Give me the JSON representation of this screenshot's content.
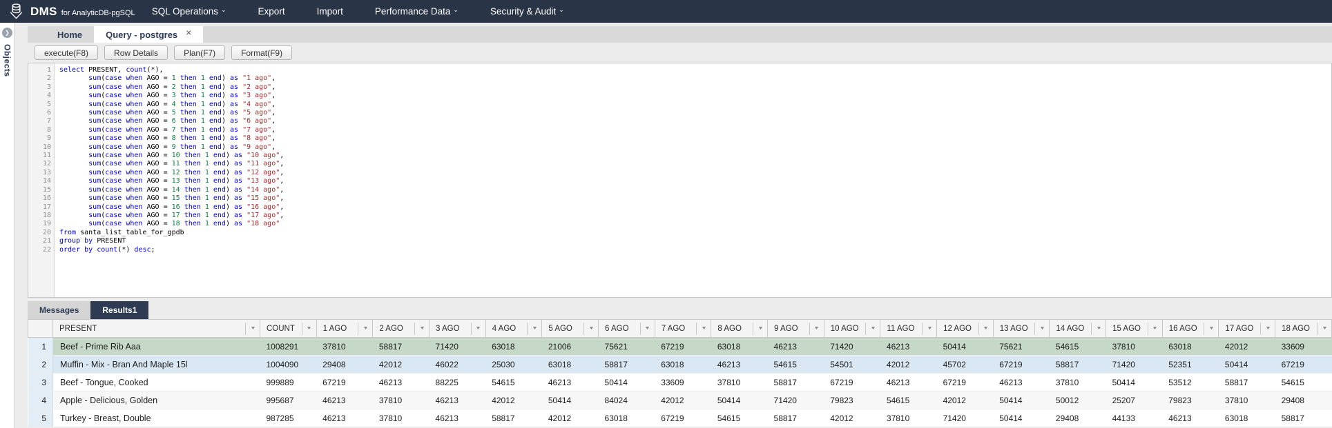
{
  "navbar": {
    "brand": "DMS",
    "brand_suffix": "for AnalyticDB-pgSQL",
    "items": [
      {
        "label": "SQL Operations",
        "caret": true
      },
      {
        "label": "Export",
        "caret": false
      },
      {
        "label": "Import",
        "caret": false
      },
      {
        "label": "Performance Data",
        "caret": true
      },
      {
        "label": "Security & Audit",
        "caret": true
      }
    ]
  },
  "sidebar": {
    "label": "Objects"
  },
  "doc_tabs": [
    {
      "label": "Home",
      "active": false,
      "closable": false
    },
    {
      "label": "Query - postgres",
      "active": true,
      "closable": true
    }
  ],
  "toolbar": {
    "buttons": [
      "execute(F8)",
      "Row Details",
      "Plan(F7)",
      "Format(F9)"
    ]
  },
  "editor": {
    "lines": [
      "select PRESENT, count(*),",
      "       sum(case when AGO = 1 then 1 end) as \"1 ago\",",
      "       sum(case when AGO = 2 then 1 end) as \"2 ago\",",
      "       sum(case when AGO = 3 then 1 end) as \"3 ago\",",
      "       sum(case when AGO = 4 then 1 end) as \"4 ago\",",
      "       sum(case when AGO = 5 then 1 end) as \"5 ago\",",
      "       sum(case when AGO = 6 then 1 end) as \"6 ago\",",
      "       sum(case when AGO = 7 then 1 end) as \"7 ago\",",
      "       sum(case when AGO = 8 then 1 end) as \"8 ago\",",
      "       sum(case when AGO = 9 then 1 end) as \"9 ago\",",
      "       sum(case when AGO = 10 then 1 end) as \"10 ago\",",
      "       sum(case when AGO = 11 then 1 end) as \"11 ago\",",
      "       sum(case when AGO = 12 then 1 end) as \"12 ago\",",
      "       sum(case when AGO = 13 then 1 end) as \"13 ago\",",
      "       sum(case when AGO = 14 then 1 end) as \"14 ago\",",
      "       sum(case when AGO = 15 then 1 end) as \"15 ago\",",
      "       sum(case when AGO = 16 then 1 end) as \"16 ago\",",
      "       sum(case when AGO = 17 then 1 end) as \"17 ago\",",
      "       sum(case when AGO = 18 then 1 end) as \"18 ago\"",
      "from santa_list_table_for_gpdb",
      "group by PRESENT",
      "order by count(*) desc;"
    ]
  },
  "results": {
    "tabs": [
      {
        "label": "Messages",
        "active": false
      },
      {
        "label": "Results1",
        "active": true
      }
    ],
    "columns": [
      "PRESENT",
      "COUNT",
      "1 AGO",
      "2 AGO",
      "3 AGO",
      "4 AGO",
      "5 AGO",
      "6 AGO",
      "7 AGO",
      "8 AGO",
      "9 AGO",
      "10 AGO",
      "11 AGO",
      "12 AGO",
      "13 AGO",
      "14 AGO",
      "15 AGO",
      "16 AGO",
      "17 AGO",
      "18 AGO"
    ],
    "rows": [
      {
        "num": 1,
        "highlight": "selected",
        "cells": [
          "Beef - Prime Rib Aaa",
          1008291,
          37810,
          58817,
          71420,
          63018,
          21006,
          75621,
          67219,
          63018,
          46213,
          71420,
          46213,
          50414,
          75621,
          54615,
          37810,
          63018,
          42012,
          33609
        ]
      },
      {
        "num": 2,
        "highlight": "hover",
        "cells": [
          "Muffin - Mix - Bran And Maple 15l",
          1004090,
          29408,
          42012,
          46022,
          25030,
          63018,
          58817,
          63018,
          46213,
          54615,
          54501,
          42012,
          45702,
          67219,
          58817,
          71420,
          52351,
          50414,
          67219
        ]
      },
      {
        "num": 3,
        "highlight": "",
        "cells": [
          "Beef - Tongue, Cooked",
          999889,
          67219,
          46213,
          88225,
          54615,
          46213,
          50414,
          33609,
          37810,
          58817,
          67219,
          46213,
          67219,
          46213,
          37810,
          50414,
          53512,
          58817,
          54615
        ]
      },
      {
        "num": 4,
        "highlight": "alt",
        "cells": [
          "Apple - Delicious, Golden",
          995687,
          46213,
          37810,
          46213,
          42012,
          50414,
          84024,
          42012,
          50414,
          71420,
          79823,
          54615,
          42012,
          50414,
          50012,
          25207,
          79823,
          37810,
          29408
        ]
      },
      {
        "num": 5,
        "highlight": "",
        "cells": [
          "Turkey - Breast, Double",
          987285,
          46213,
          37810,
          46213,
          58817,
          42012,
          63018,
          67219,
          54615,
          58817,
          42012,
          37810,
          71420,
          50414,
          29408,
          44133,
          46213,
          63018,
          58817
        ]
      }
    ]
  },
  "colors": {
    "navbar-bg": "#2a3447",
    "active-tab-bg": "#2e3b52",
    "selected-row": "#c6d8c8",
    "hover-row": "#d9e8f3",
    "kw": "#0000e6",
    "num": "#0a7d44",
    "str": "#a52a2a"
  }
}
